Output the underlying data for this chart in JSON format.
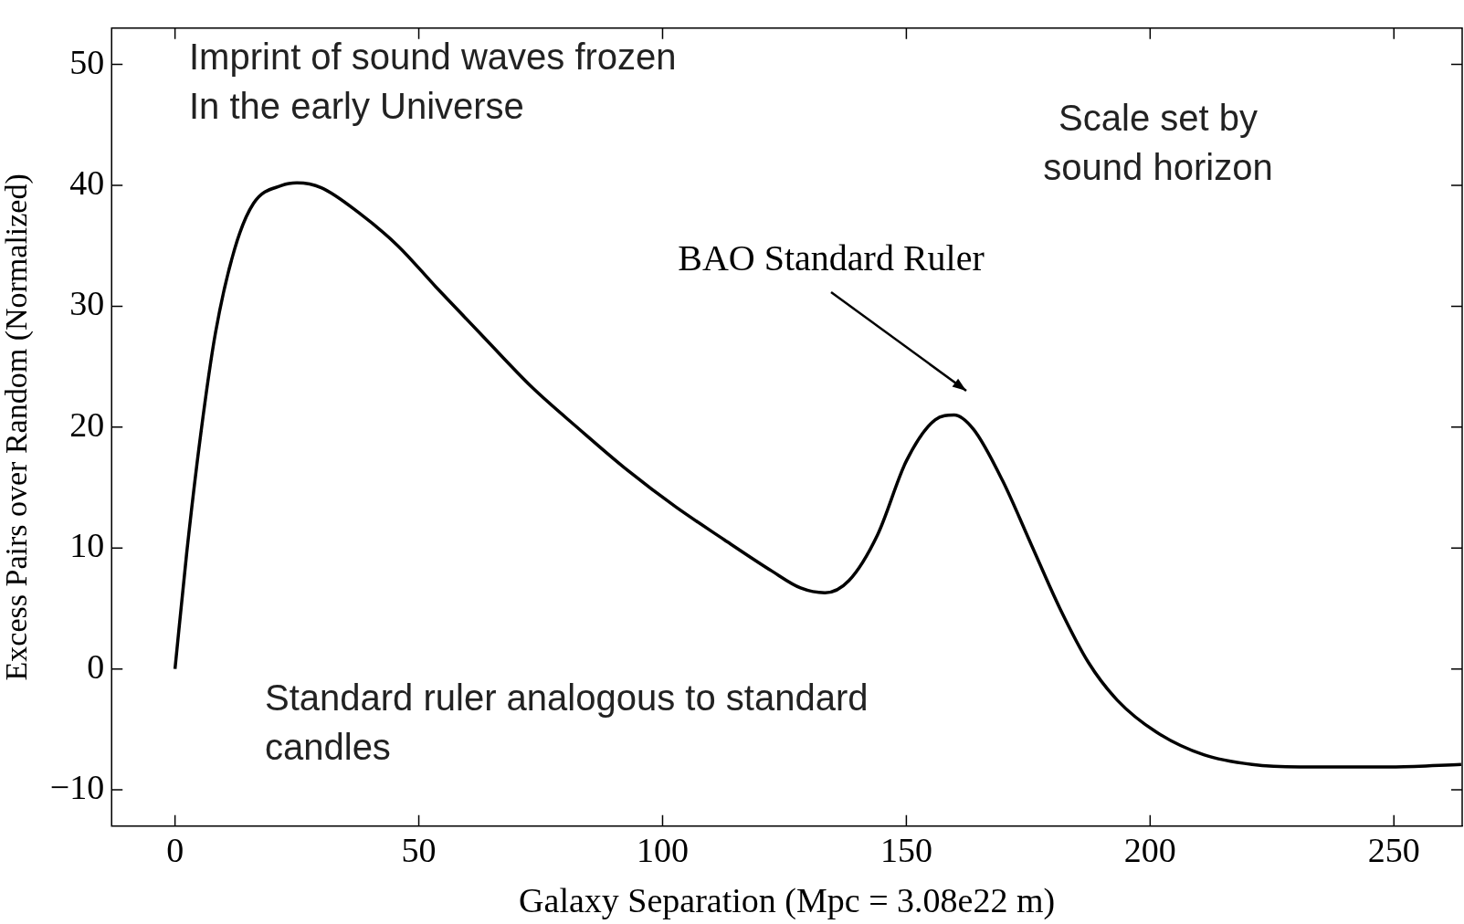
{
  "chart_data": {
    "type": "line",
    "xlabel": "Galaxy Separation (Mpc = 3.08e22 m)",
    "ylabel": "Excess Pairs over Random (Normalized)",
    "xlim": [
      -13,
      264
    ],
    "ylim": [
      -13,
      53
    ],
    "xticks": [
      0,
      50,
      100,
      150,
      200,
      250
    ],
    "yticks": [
      -10,
      0,
      10,
      20,
      30,
      40,
      50
    ],
    "grid": false,
    "legend": false,
    "marker": "none",
    "line_style": "solid",
    "series": [
      {
        "color": "#000000",
        "x": [
          0,
          2.4,
          5.3,
          8.3,
          12.2,
          16.1,
          22,
          25,
          30,
          37.8,
          45.7,
          53.5,
          63.4,
          73.2,
          83,
          92.9,
          102.7,
          112.6,
          122.4,
          128.3,
          133.3,
          138.2,
          144.1,
          150,
          155.9,
          159.8,
          163.8,
          169.7,
          175.6,
          181.5,
          187.4,
          193.3,
          201.2,
          211,
          220.9,
          230.7,
          240.6,
          250.4,
          263.8
        ],
        "values": [
          0,
          9.6,
          19.5,
          27.8,
          34.7,
          38.5,
          40,
          40.2,
          39.8,
          37.7,
          35,
          31.6,
          27.4,
          23.3,
          19.8,
          16.4,
          13.4,
          10.7,
          8.1,
          6.7,
          6.3,
          7.3,
          11.1,
          17.2,
          20.6,
          21,
          19.8,
          15.6,
          10.3,
          5,
          0.5,
          -2.6,
          -5.2,
          -7.1,
          -7.9,
          -8.1,
          -8.1,
          -8.1,
          -7.9
        ]
      }
    ],
    "annotations": [
      "Imprint of sound waves frozen\nIn the early Universe",
      "Scale set by\nsound horizon",
      "BAO Standard Ruler",
      "Standard ruler analogous to standard\ncandles"
    ]
  }
}
